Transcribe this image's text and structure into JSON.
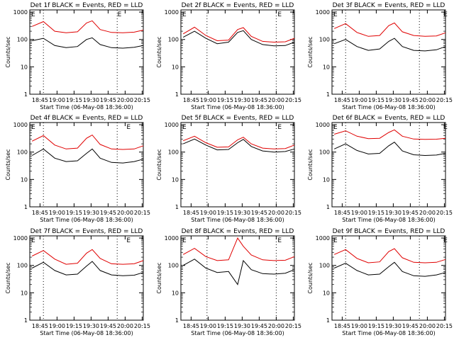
{
  "chart_data": [
    {
      "type": "line",
      "title": "Det 1f BLACK = Events, RED = LLD",
      "ylabel": "Counts/sec",
      "xlabel": "Start Time (06-May-08 18:36:00)",
      "x_ticks": [
        "18:45",
        "19:00",
        "19:15",
        "19:30",
        "19:45",
        "20:00",
        "20:15"
      ],
      "y_ticks": [
        "1",
        "10",
        "100",
        "1000"
      ],
      "ylim": [
        1,
        1200
      ],
      "scale": "log",
      "time": [
        "18:38",
        "18:48",
        "18:58",
        "19:08",
        "19:18",
        "19:26",
        "19:31",
        "19:38",
        "19:48",
        "19:58",
        "20:08",
        "20:16"
      ],
      "series": [
        {
          "name": "BLACK = Events",
          "values": [
            90,
            110,
            60,
            50,
            55,
            100,
            115,
            65,
            50,
            48,
            52,
            60
          ]
        },
        {
          "name": "RED = LLD",
          "values": [
            300,
            450,
            200,
            175,
            190,
            400,
            480,
            230,
            180,
            175,
            185,
            220
          ]
        }
      ],
      "markers": [
        {
          "label": "E",
          "time": "18:36"
        },
        {
          "label": "E",
          "time": "19:52"
        }
      ],
      "vlines": [
        "18:48",
        "19:53"
      ]
    },
    {
      "type": "line",
      "title": "Det 2f BLACK = Events, RED = LLD",
      "ylabel": "Counts/sec",
      "xlabel": "Start Time (06-May-08 18:36:00)",
      "x_ticks": [
        "18:45",
        "19:00",
        "19:15",
        "19:30",
        "19:45",
        "20:00",
        "20:15"
      ],
      "y_ticks": [
        "1",
        "10",
        "100",
        "1000"
      ],
      "ylim": [
        1,
        1200
      ],
      "scale": "log",
      "time": [
        "18:38",
        "18:48",
        "18:58",
        "19:08",
        "19:18",
        "19:26",
        "19:31",
        "19:38",
        "19:48",
        "19:58",
        "20:08",
        "20:16"
      ],
      "series": [
        {
          "name": "BLACK = Events",
          "values": [
            120,
            200,
            110,
            70,
            80,
            180,
            210,
            100,
            65,
            58,
            60,
            80
          ]
        },
        {
          "name": "RED = LLD",
          "values": [
            160,
            280,
            140,
            90,
            95,
            230,
            270,
            130,
            85,
            80,
            82,
            110
          ]
        }
      ],
      "markers": [
        {
          "label": "E",
          "time": "18:36"
        },
        {
          "label": "E",
          "time": "20:00"
        }
      ],
      "vlines": [
        "18:59",
        "20:00"
      ]
    },
    {
      "type": "line",
      "title": "Det 3f BLACK = Events, RED = LLD",
      "ylabel": "Counts/sec",
      "xlabel": "Start Time (06-May-08 18:36:00)",
      "x_ticks": [
        "18:45",
        "19:00",
        "19:15",
        "19:30",
        "19:45",
        "20:00",
        "20:15"
      ],
      "y_ticks": [
        "1",
        "10",
        "100",
        "1000"
      ],
      "ylim": [
        1,
        1200
      ],
      "scale": "log",
      "time": [
        "18:38",
        "18:48",
        "18:58",
        "19:08",
        "19:18",
        "19:26",
        "19:31",
        "19:38",
        "19:48",
        "19:58",
        "20:08",
        "20:16"
      ],
      "series": [
        {
          "name": "BLACK = Events",
          "values": [
            70,
            100,
            55,
            40,
            45,
            85,
            110,
            55,
            40,
            38,
            42,
            55
          ]
        },
        {
          "name": "RED = LLD",
          "values": [
            250,
            380,
            180,
            130,
            140,
            320,
            400,
            190,
            140,
            130,
            135,
            175
          ]
        }
      ],
      "markers": [
        {
          "label": "E",
          "time": "18:36"
        },
        {
          "label": "E",
          "time": "20:13"
        }
      ],
      "vlines": [
        "18:48",
        "19:53"
      ]
    },
    {
      "type": "line",
      "title": "Det 4f BLACK = Events, RED = LLD",
      "ylabel": "Counts/sec",
      "xlabel": "Start Time (06-May-08 18:36:00)",
      "x_ticks": [
        "18:45",
        "19:00",
        "19:15",
        "19:30",
        "19:45",
        "20:00",
        "20:15"
      ],
      "y_ticks": [
        "1",
        "10",
        "100",
        "1000"
      ],
      "ylim": [
        1,
        1200
      ],
      "scale": "log",
      "time": [
        "18:38",
        "18:48",
        "18:58",
        "19:08",
        "19:18",
        "19:26",
        "19:31",
        "19:38",
        "19:48",
        "19:58",
        "20:08",
        "20:16"
      ],
      "series": [
        {
          "name": "BLACK = Events",
          "values": [
            75,
            130,
            60,
            45,
            48,
            90,
            130,
            60,
            42,
            40,
            45,
            55
          ]
        },
        {
          "name": "RED = LLD",
          "values": [
            250,
            400,
            180,
            130,
            140,
            320,
            420,
            190,
            130,
            125,
            130,
            170
          ]
        }
      ],
      "markers": [
        {
          "label": "E",
          "time": "18:36"
        },
        {
          "label": "E",
          "time": "20:00"
        }
      ],
      "vlines": [
        "18:48",
        "19:53"
      ]
    },
    {
      "type": "line",
      "title": "Det 5f BLACK = Events, RED = LLD",
      "ylabel": "Counts/sec",
      "xlabel": "Start Time (06-May-08 18:36:00)",
      "x_ticks": [
        "18:45",
        "19:00",
        "19:15",
        "19:30",
        "19:45",
        "20:00",
        "20:15"
      ],
      "y_ticks": [
        "1",
        "10",
        "100",
        "1000"
      ],
      "ylim": [
        1,
        1200
      ],
      "scale": "log",
      "time": [
        "18:38",
        "18:48",
        "18:58",
        "19:08",
        "19:18",
        "19:26",
        "19:31",
        "19:38",
        "19:48",
        "19:58",
        "20:08",
        "20:16"
      ],
      "series": [
        {
          "name": "BLACK = Events",
          "values": [
            200,
            300,
            180,
            120,
            125,
            220,
            290,
            160,
            110,
            100,
            105,
            130
          ]
        },
        {
          "name": "RED = LLD",
          "values": [
            260,
            380,
            220,
            150,
            155,
            280,
            350,
            200,
            140,
            130,
            135,
            180
          ]
        }
      ],
      "markers": [
        {
          "label": "E",
          "time": "18:36"
        },
        {
          "label": "E",
          "time": "20:00"
        }
      ],
      "vlines": [
        "18:59",
        "20:00"
      ]
    },
    {
      "type": "line",
      "title": "Det 6f BLACK = Events, RED = LLD",
      "ylabel": "Counts/sec",
      "xlabel": "Start Time (06-May-08 18:36:00)",
      "x_ticks": [
        "18:45",
        "19:00",
        "19:15",
        "19:30",
        "19:45",
        "20:00",
        "20:15"
      ],
      "y_ticks": [
        "1",
        "10",
        "100",
        "1000"
      ],
      "ylim": [
        1,
        1200
      ],
      "scale": "log",
      "time": [
        "18:38",
        "18:48",
        "18:58",
        "19:08",
        "19:18",
        "19:26",
        "19:31",
        "19:38",
        "19:48",
        "19:58",
        "20:08",
        "20:16"
      ],
      "series": [
        {
          "name": "BLACK = Events",
          "values": [
            130,
            200,
            115,
            85,
            90,
            170,
            230,
            110,
            80,
            75,
            78,
            90
          ]
        },
        {
          "name": "RED = LLD",
          "values": [
            450,
            600,
            380,
            310,
            320,
            520,
            650,
            380,
            300,
            290,
            295,
            320
          ]
        }
      ],
      "markers": [
        {
          "label": "E",
          "time": "18:36"
        },
        {
          "label": "E",
          "time": "20:13"
        }
      ],
      "vlines": [
        "18:48",
        "19:53"
      ]
    },
    {
      "type": "line",
      "title": "Det 7f BLACK = Events, RED = LLD",
      "ylabel": "Counts/sec",
      "xlabel": "Start Time (06-May-08 18:36:00)",
      "x_ticks": [
        "18:45",
        "19:00",
        "19:15",
        "19:30",
        "19:45",
        "20:00",
        "20:15"
      ],
      "y_ticks": [
        "1",
        "10",
        "100",
        "1000"
      ],
      "ylim": [
        1,
        1200
      ],
      "scale": "log",
      "time": [
        "18:38",
        "18:48",
        "18:58",
        "19:08",
        "19:18",
        "19:26",
        "19:31",
        "19:38",
        "19:48",
        "19:58",
        "20:08",
        "20:16"
      ],
      "series": [
        {
          "name": "BLACK = Events",
          "values": [
            80,
            130,
            65,
            45,
            48,
            95,
            140,
            65,
            45,
            42,
            44,
            55
          ]
        },
        {
          "name": "RED = LLD",
          "values": [
            220,
            350,
            170,
            110,
            120,
            280,
            380,
            180,
            115,
            110,
            115,
            150
          ]
        }
      ],
      "markers": [
        {
          "label": "E",
          "time": "18:36"
        },
        {
          "label": "E",
          "time": "20:00"
        }
      ],
      "vlines": [
        "18:48",
        "19:53"
      ]
    },
    {
      "type": "line",
      "title": "Det 8f BLACK = Events, RED = LLD",
      "ylabel": "Counts/sec",
      "xlabel": "Start Time (06-May-08 18:36:00)",
      "x_ticks": [
        "18:45",
        "19:00",
        "19:15",
        "19:30",
        "19:45",
        "20:00",
        "20:15"
      ],
      "y_ticks": [
        "1",
        "10",
        "100",
        "1000"
      ],
      "ylim": [
        1,
        1200
      ],
      "scale": "log",
      "time": [
        "18:38",
        "18:48",
        "18:58",
        "19:08",
        "19:18",
        "19:26",
        "19:31",
        "19:38",
        "19:48",
        "19:58",
        "20:08",
        "20:16"
      ],
      "series": [
        {
          "name": "BLACK = Events",
          "values": [
            100,
            170,
            80,
            55,
            60,
            20,
            150,
            70,
            50,
            48,
            52,
            70
          ]
        },
        {
          "name": "RED = LLD",
          "values": [
            250,
            420,
            210,
            150,
            160,
            1000,
            500,
            240,
            160,
            150,
            155,
            210
          ]
        }
      ],
      "markers": [
        {
          "label": "E",
          "time": "18:36"
        },
        {
          "label": "E",
          "time": "20:00"
        }
      ],
      "vlines": [
        "18:59",
        "20:00"
      ]
    },
    {
      "type": "line",
      "title": "Det 9f BLACK = Events, RED = LLD",
      "ylabel": "Counts/sec",
      "xlabel": "Start Time (06-May-08 18:36:00)",
      "x_ticks": [
        "18:45",
        "19:00",
        "19:15",
        "19:30",
        "19:45",
        "20:00",
        "20:15"
      ],
      "y_ticks": [
        "1",
        "10",
        "100",
        "1000"
      ],
      "ylim": [
        1,
        1200
      ],
      "scale": "log",
      "time": [
        "18:38",
        "18:48",
        "18:58",
        "19:08",
        "19:18",
        "19:26",
        "19:31",
        "19:38",
        "19:48",
        "19:58",
        "20:08",
        "20:16"
      ],
      "series": [
        {
          "name": "BLACK = Events",
          "values": [
            80,
            120,
            65,
            45,
            48,
            90,
            130,
            60,
            42,
            40,
            45,
            55
          ]
        },
        {
          "name": "RED = LLD",
          "values": [
            250,
            380,
            180,
            125,
            135,
            320,
            410,
            190,
            130,
            125,
            130,
            165
          ]
        }
      ],
      "markers": [
        {
          "label": "E",
          "time": "18:36"
        },
        {
          "label": "E",
          "time": "20:13"
        }
      ],
      "vlines": [
        "18:48",
        "19:53"
      ]
    }
  ]
}
